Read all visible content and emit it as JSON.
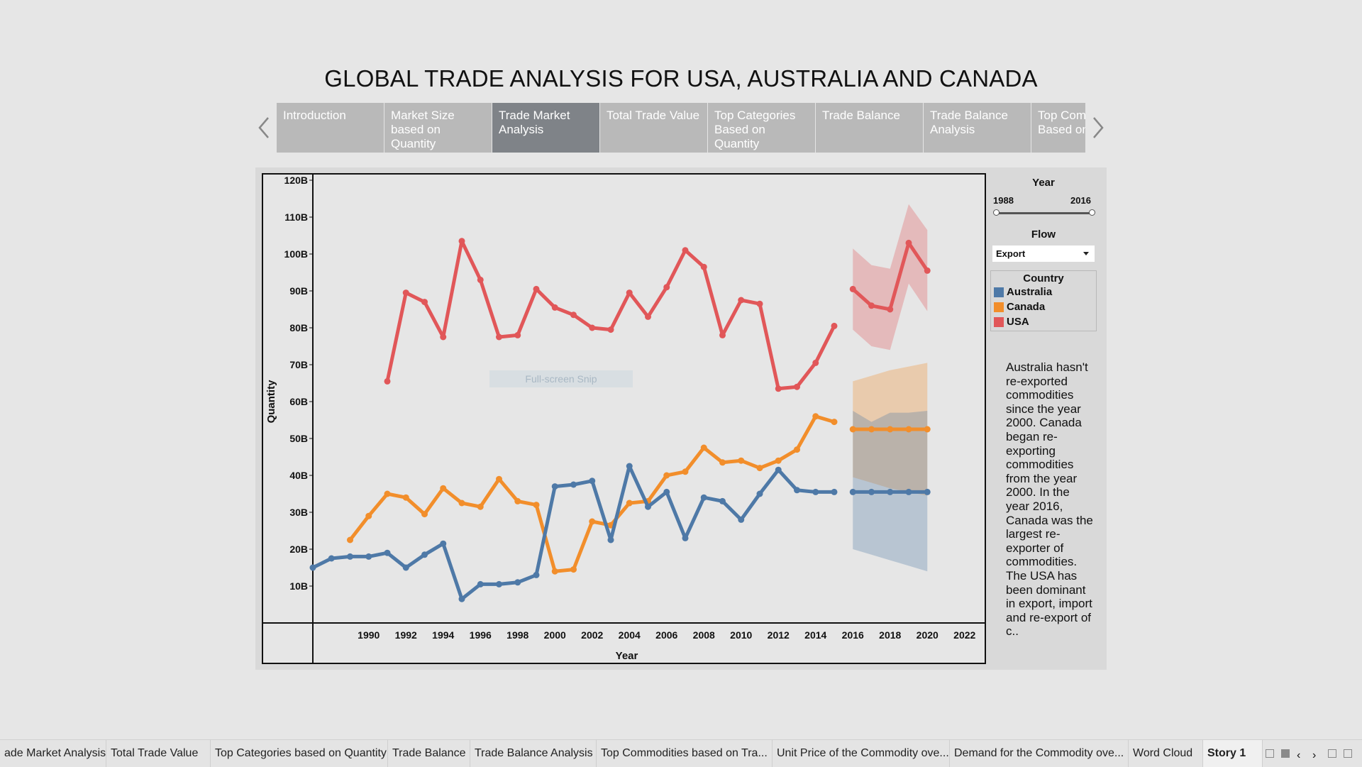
{
  "story": {
    "title": "GLOBAL TRADE ANALYSIS FOR USA, AUSTRALIA AND CANADA",
    "points": [
      {
        "label": "Introduction",
        "active": false
      },
      {
        "label": "Market Size based on Quantity",
        "active": false
      },
      {
        "label": "Trade Market Analysis",
        "active": true
      },
      {
        "label": "Total Trade Value",
        "active": false
      },
      {
        "label": "Top Categories Based on Quantity",
        "active": false
      },
      {
        "label": "Trade Balance",
        "active": false
      },
      {
        "label": "Trade Balance Analysis",
        "active": false
      },
      {
        "label": "Top Commodities Based on Value",
        "active": false
      }
    ]
  },
  "filters": {
    "year": {
      "title": "Year",
      "min": "1988",
      "max": "2016"
    },
    "flow": {
      "title": "Flow",
      "value": "Export"
    }
  },
  "legend": {
    "title": "Country",
    "items": [
      {
        "label": "Australia",
        "color": "#4e79a7"
      },
      {
        "label": "Canada",
        "color": "#f28e2b"
      },
      {
        "label": "USA",
        "color": "#e15759"
      }
    ]
  },
  "annotation": "Australia hasn't re-exported commodities since the year 2000. Canada began re-exporting commodities from the year 2000. In the year 2016, Canada was the largest re-exporter of commodities. The USA has been dominant in export, import and re-export of c..",
  "watermark": "Full-screen Snip",
  "sheet_tabs": [
    "ade Market Analysis",
    "Total Trade Value",
    "Top Categories based on Quantity",
    "Trade Balance",
    "Trade Balance Analysis",
    "Top Commodities based on Tra...",
    "Unit Price of the Commodity ove...",
    "Demand for the Commodity ove...",
    "Word Cloud",
    "Story 1"
  ],
  "chart_data": {
    "type": "line",
    "xlabel": "Year",
    "ylabel": "Quantity",
    "xlim": [
      1987,
      2023
    ],
    "ylim": [
      0,
      120000000000
    ],
    "x_ticks": [
      "1990",
      "1992",
      "1994",
      "1996",
      "1998",
      "2000",
      "2002",
      "2004",
      "2006",
      "2008",
      "2010",
      "2012",
      "2014",
      "2016",
      "2018",
      "2020",
      "2022"
    ],
    "y_ticks": [
      "10B",
      "20B",
      "30B",
      "40B",
      "50B",
      "60B",
      "70B",
      "80B",
      "90B",
      "100B",
      "110B",
      "120B"
    ],
    "series": [
      {
        "name": "USA",
        "color": "#e15759",
        "x": [
          1991,
          1992,
          1993,
          1994,
          1995,
          1996,
          1997,
          1998,
          1999,
          2000,
          2001,
          2002,
          2003,
          2004,
          2005,
          2006,
          2007,
          2008,
          2009,
          2010,
          2011,
          2012,
          2013,
          2014,
          2015
        ],
        "y": [
          65500000000,
          89500000000,
          87000000000,
          77500000000,
          103500000000,
          93000000000,
          77500000000,
          78000000000,
          90500000000,
          85500000000,
          83500000000,
          80000000000,
          79500000000,
          89500000000,
          83000000000,
          91000000000,
          101000000000,
          96500000000,
          78000000000,
          87500000000,
          86500000000,
          63500000000,
          64000000000,
          70500000000,
          80500000000
        ],
        "forecast": {
          "x": [
            2016,
            2017,
            2018,
            2019,
            2020
          ],
          "y": [
            90500000000,
            86000000000,
            85000000000,
            103000000000,
            95500000000
          ],
          "upper": [
            101500000000,
            97000000000,
            96000000000,
            113500000000,
            106500000000
          ],
          "lower": [
            79500000000,
            75000000000,
            74000000000,
            92000000000,
            84500000000
          ]
        }
      },
      {
        "name": "Canada",
        "color": "#f28e2b",
        "x": [
          1989,
          1990,
          1991,
          1992,
          1993,
          1994,
          1995,
          1996,
          1997,
          1998,
          1999,
          2000,
          2001,
          2002,
          2003,
          2004,
          2005,
          2006,
          2007,
          2008,
          2009,
          2010,
          2011,
          2012,
          2013,
          2014,
          2015
        ],
        "y": [
          22500000000,
          29000000000,
          35000000000,
          34000000000,
          29500000000,
          36500000000,
          32500000000,
          31500000000,
          39000000000,
          33000000000,
          32000000000,
          14000000000,
          14500000000,
          27500000000,
          26500000000,
          32500000000,
          33000000000,
          40000000000,
          41000000000,
          47500000000,
          43500000000,
          44000000000,
          42000000000,
          44000000000,
          47000000000,
          56000000000,
          54500000000
        ],
        "forecast": {
          "x": [
            2016,
            2017,
            2018,
            2019,
            2020
          ],
          "y": [
            52500000000,
            52500000000,
            52500000000,
            52500000000,
            52500000000
          ],
          "upper": [
            65500000000,
            67000000000,
            68500000000,
            69500000000,
            70500000000
          ],
          "lower": [
            39500000000,
            38000000000,
            36500000000,
            35500000000,
            34500000000
          ]
        }
      },
      {
        "name": "Australia",
        "color": "#4e79a7",
        "x": [
          1987,
          1988,
          1989,
          1990,
          1991,
          1992,
          1993,
          1994,
          1995,
          1996,
          1997,
          1998,
          1999,
          2000,
          2001,
          2002,
          2003,
          2004,
          2005,
          2006,
          2007,
          2008,
          2009,
          2010,
          2011,
          2012,
          2013,
          2014,
          2015
        ],
        "y": [
          15000000000,
          17500000000,
          18000000000,
          18000000000,
          19000000000,
          15000000000,
          18500000000,
          21500000000,
          6500000000,
          10500000000,
          10500000000,
          11000000000,
          13000000000,
          37000000000,
          37500000000,
          38500000000,
          22500000000,
          42500000000,
          31500000000,
          35500000000,
          23000000000,
          34000000000,
          33000000000,
          28000000000,
          35000000000,
          41500000000,
          36000000000,
          35500000000,
          35500000000
        ],
        "forecast": {
          "x": [
            2016,
            2017,
            2018,
            2019,
            2020
          ],
          "y": [
            35500000000,
            35500000000,
            35500000000,
            35500000000,
            35500000000
          ],
          "upper": [
            57500000000,
            54500000000,
            57000000000,
            57000000000,
            57500000000
          ],
          "lower": [
            20000000000,
            18500000000,
            17000000000,
            15500000000,
            14000000000
          ]
        }
      }
    ],
    "grid": false,
    "legend_position": "right"
  }
}
